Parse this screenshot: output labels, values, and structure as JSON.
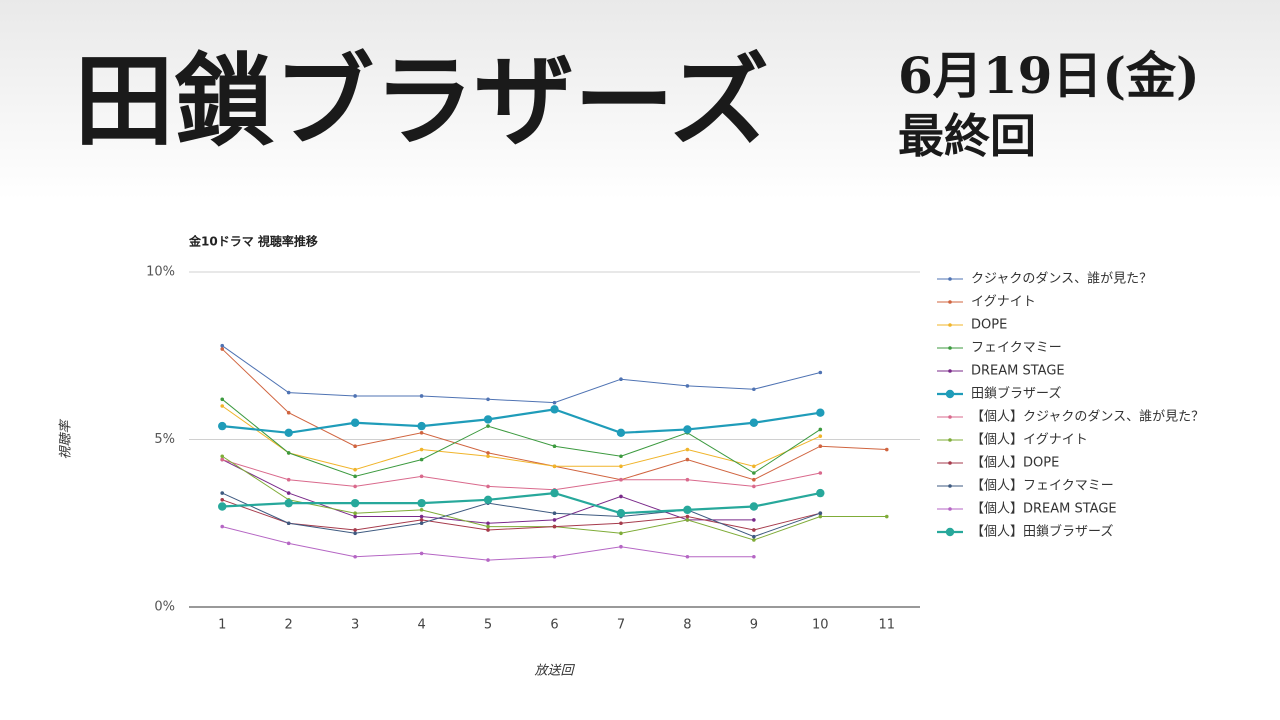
{
  "header": {
    "title": "田鎖ブラザーズ",
    "date": "6月19日(金)",
    "subtitle": "最終回"
  },
  "chart_data": {
    "type": "line",
    "title": "金10ドラマ 視聴率推移",
    "x_label": "放送回",
    "y_label": "視聴率",
    "x": [
      1,
      2,
      3,
      4,
      5,
      6,
      7,
      8,
      9,
      10,
      11
    ],
    "xlim": [
      0.5,
      11.5
    ],
    "xticks": [
      1,
      2,
      3,
      4,
      5,
      6,
      7,
      8,
      9,
      10,
      11
    ],
    "ylim": [
      0,
      10
    ],
    "yticks": [
      {
        "value": 0,
        "label": "0%"
      },
      {
        "value": 5,
        "label": "5%"
      },
      {
        "value": 10,
        "label": "10%"
      }
    ],
    "grid": true,
    "legend": "right",
    "series": [
      {
        "name": "クジャクのダンス、誰が見た？",
        "color": "#4f73b3",
        "values": [
          7.8,
          6.4,
          6.3,
          6.3,
          6.2,
          6.1,
          6.8,
          6.6,
          6.5,
          7.0,
          null
        ]
      },
      {
        "name": "イグナイト",
        "color": "#d0643f",
        "values": [
          7.7,
          5.8,
          4.8,
          5.2,
          4.6,
          4.2,
          3.8,
          4.4,
          3.8,
          4.8,
          4.7
        ]
      },
      {
        "name": "DOPE",
        "color": "#f0b42a",
        "values": [
          6.0,
          4.6,
          4.1,
          4.7,
          4.5,
          4.2,
          4.2,
          4.7,
          4.2,
          5.1,
          null
        ]
      },
      {
        "name": "フェイクマミー",
        "color": "#3c9a3f",
        "values": [
          6.2,
          4.6,
          3.9,
          4.4,
          5.4,
          4.8,
          4.5,
          5.2,
          4.0,
          5.3,
          null
        ]
      },
      {
        "name": "DREAM STAGE",
        "color": "#7a2a8a",
        "values": [
          4.4,
          3.4,
          2.7,
          2.7,
          2.5,
          2.6,
          3.3,
          2.6,
          2.6,
          null,
          null
        ]
      },
      {
        "name": "田鎖ブラザーズ",
        "color": "#1f9cb9",
        "emphasis": true,
        "values": [
          5.4,
          5.2,
          5.5,
          5.4,
          5.6,
          5.9,
          5.2,
          5.3,
          5.5,
          5.8,
          null
        ]
      },
      {
        "name": "【個人】クジャクのダンス、誰が見た？",
        "color": "#d9698c",
        "values": [
          4.4,
          3.8,
          3.6,
          3.9,
          3.6,
          3.5,
          3.8,
          3.8,
          3.6,
          4.0,
          null
        ]
      },
      {
        "name": "【個人】イグナイト",
        "color": "#7fac38",
        "values": [
          4.5,
          3.2,
          2.8,
          2.9,
          2.4,
          2.4,
          2.2,
          2.6,
          2.0,
          2.7,
          2.7
        ]
      },
      {
        "name": "【個人】DOPE",
        "color": "#a63b4c",
        "values": [
          3.2,
          2.5,
          2.3,
          2.6,
          2.3,
          2.4,
          2.5,
          2.7,
          2.3,
          2.8,
          null
        ]
      },
      {
        "name": "【個人】フェイクマミー",
        "color": "#3e5a80",
        "values": [
          3.4,
          2.5,
          2.2,
          2.5,
          3.1,
          2.8,
          2.7,
          2.9,
          2.1,
          2.8,
          null
        ]
      },
      {
        "name": "【個人】DREAM STAGE",
        "color": "#b566c4",
        "values": [
          2.4,
          1.9,
          1.5,
          1.6,
          1.4,
          1.5,
          1.8,
          1.5,
          1.5,
          null,
          null
        ]
      },
      {
        "name": "【個人】田鎖ブラザーズ",
        "color": "#27a89b",
        "emphasis": true,
        "values": [
          3.0,
          3.1,
          3.1,
          3.1,
          3.2,
          3.4,
          2.8,
          2.9,
          3.0,
          3.4,
          null
        ]
      }
    ]
  }
}
